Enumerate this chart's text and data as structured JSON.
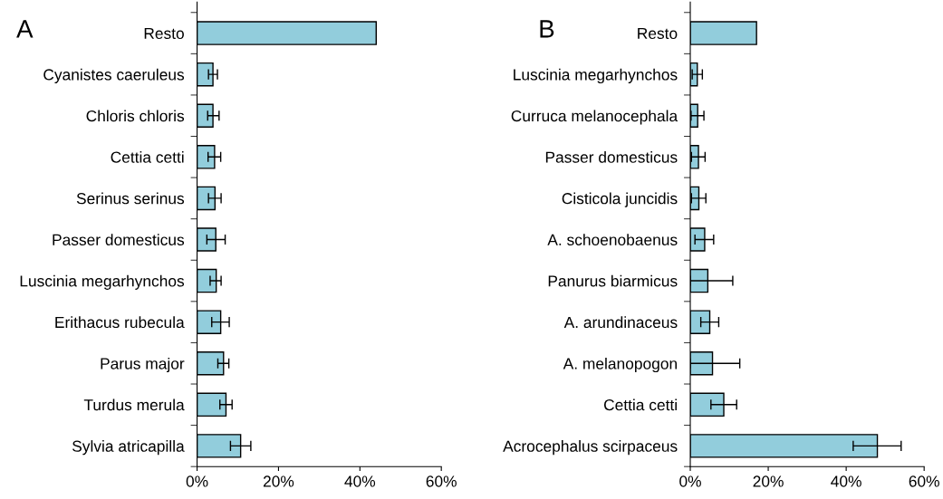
{
  "chart_data": [
    {
      "type": "bar",
      "orientation": "horizontal",
      "title": "A",
      "categories": [
        "Resto",
        "Cyanistes caeruleus",
        "Chloris chloris",
        "Cettia cetti",
        "Serinus serinus",
        "Passer domesticus",
        "Luscinia megarhynchos",
        "Erithacus rubecula",
        "Parus major",
        "Turdus merula",
        "Sylvia atricapilla"
      ],
      "values": [
        44,
        3.9,
        3.9,
        4.3,
        4.4,
        4.6,
        4.7,
        5.8,
        6.5,
        7.1,
        10.7
      ],
      "errors": [
        null,
        [
          2.8,
          5.0
        ],
        [
          2.6,
          5.4
        ],
        [
          2.7,
          5.8
        ],
        [
          2.8,
          5.9
        ],
        [
          2.4,
          6.9
        ],
        [
          3.2,
          5.9
        ],
        [
          3.6,
          7.9
        ],
        [
          5.1,
          7.8
        ],
        [
          5.6,
          8.6
        ],
        [
          8.2,
          13.2
        ]
      ],
      "color": "#92cddc",
      "xlim": [
        0,
        60
      ],
      "xticks": [
        {
          "value": 0,
          "label": "0%"
        },
        {
          "value": 20,
          "label": "20%"
        },
        {
          "value": 40,
          "label": "40%"
        },
        {
          "value": 60,
          "label": "60%"
        }
      ],
      "grid": false,
      "legend": false
    },
    {
      "type": "bar",
      "orientation": "horizontal",
      "title": "B",
      "categories": [
        "Resto",
        "Luscinia megarhynchos",
        "Curruca melanocephala",
        "Passer domesticus",
        "Cisticola juncidis",
        "A. schoenobaenus",
        "Panurus biarmicus",
        "A. arundinaceus",
        "A. melanopogon",
        "Cettia cetti",
        "Acrocephalus scirpaceus"
      ],
      "values": [
        17,
        1.8,
        1.9,
        2.1,
        2.2,
        3.7,
        4.5,
        5.0,
        5.7,
        8.6,
        48
      ],
      "errors": [
        null,
        [
          0.5,
          3.1
        ],
        [
          0.2,
          3.5
        ],
        [
          0.3,
          3.8
        ],
        [
          0.3,
          4.0
        ],
        [
          1.2,
          6.0
        ],
        [
          0,
          10.9
        ],
        [
          2.7,
          7.3
        ],
        [
          0,
          12.7
        ],
        [
          5.3,
          11.9
        ],
        [
          41.8,
          54.1
        ]
      ],
      "color": "#92cddc",
      "xlim": [
        0,
        60
      ],
      "xticks": [
        {
          "value": 0,
          "label": "0%"
        },
        {
          "value": 20,
          "label": "20%"
        },
        {
          "value": 40,
          "label": "40%"
        },
        {
          "value": 60,
          "label": "60%"
        }
      ],
      "grid": false,
      "legend": false
    }
  ]
}
